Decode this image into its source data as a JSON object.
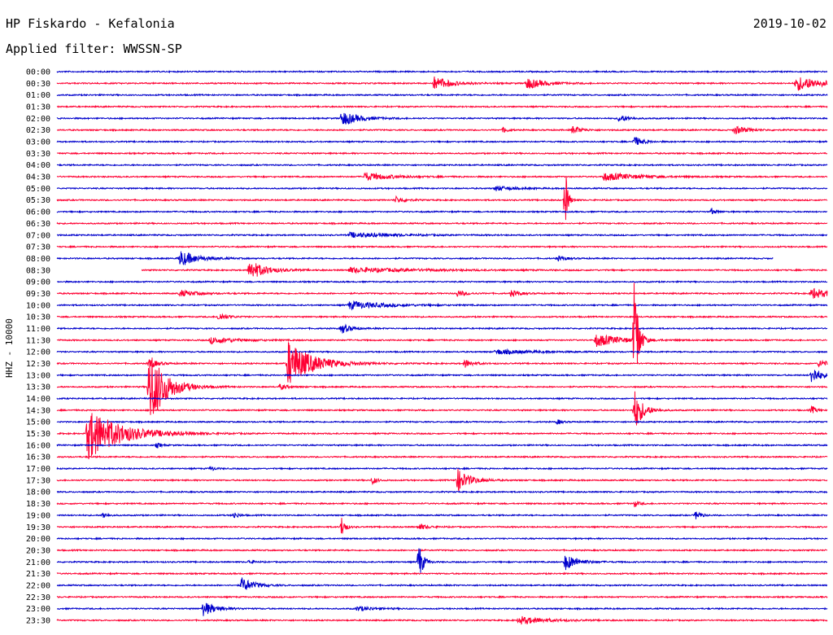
{
  "header": {
    "station": "HP Fiskardo - Kefalonia",
    "date": "2019-10-02",
    "filter": "Applied filter: WWSSN-SP"
  },
  "y_axis_label": "HHZ - 10000",
  "colors": {
    "even_row": "#0000cc",
    "odd_row": "#ff0033"
  },
  "chart_data": {
    "type": "line",
    "title": "HP Fiskardo - Kefalonia",
    "subtitle": "Applied filter: WWSSN-SP",
    "ylabel": "HHZ - 10000",
    "xlabel": "",
    "grid": false,
    "legend": "none",
    "row_interval_minutes": 30,
    "row_labels": [
      "00:00",
      "00:30",
      "01:00",
      "01:30",
      "02:00",
      "02:30",
      "03:00",
      "03:30",
      "04:00",
      "04:30",
      "05:00",
      "05:30",
      "06:00",
      "06:30",
      "07:00",
      "07:30",
      "08:00",
      "08:30",
      "09:00",
      "09:30",
      "10:00",
      "10:30",
      "11:00",
      "11:30",
      "12:00",
      "12:30",
      "13:00",
      "13:30",
      "14:00",
      "14:30",
      "15:00",
      "15:30",
      "16:00",
      "16:30",
      "17:00",
      "17:30",
      "18:00",
      "18:30",
      "19:00",
      "19:30",
      "20:00",
      "20:30",
      "21:00",
      "21:30",
      "22:00",
      "22:30",
      "23:00",
      "23:30"
    ],
    "events": [
      {
        "row": 1,
        "t": 0.49,
        "amp": 8,
        "dur": 0.02
      },
      {
        "row": 1,
        "t": 0.61,
        "amp": 7,
        "dur": 0.02
      },
      {
        "row": 1,
        "t": 0.96,
        "amp": 9,
        "dur": 0.03
      },
      {
        "row": 4,
        "t": 0.37,
        "amp": 9,
        "dur": 0.02
      },
      {
        "row": 4,
        "t": 0.73,
        "amp": 5,
        "dur": 0.01
      },
      {
        "row": 5,
        "t": 0.58,
        "amp": 4,
        "dur": 0.005
      },
      {
        "row": 5,
        "t": 0.67,
        "amp": 5,
        "dur": 0.01
      },
      {
        "row": 5,
        "t": 0.88,
        "amp": 5,
        "dur": 0.015
      },
      {
        "row": 6,
        "t": 0.75,
        "amp": 6,
        "dur": 0.01
      },
      {
        "row": 9,
        "t": 0.4,
        "amp": 5,
        "dur": 0.03
      },
      {
        "row": 9,
        "t": 0.71,
        "amp": 5,
        "dur": 0.04
      },
      {
        "row": 10,
        "t": 0.57,
        "amp": 3,
        "dur": 0.02
      },
      {
        "row": 11,
        "t": 0.44,
        "amp": 4,
        "dur": 0.01
      },
      {
        "row": 11,
        "t": 0.66,
        "amp": 40,
        "dur": 0.003
      },
      {
        "row": 12,
        "t": 0.85,
        "amp": 4,
        "dur": 0.005
      },
      {
        "row": 14,
        "t": 0.38,
        "amp": 3,
        "dur": 0.05
      },
      {
        "row": 16,
        "t": 0.16,
        "amp": 10,
        "dur": 0.02
      },
      {
        "row": 16,
        "t": 0.65,
        "amp": 3,
        "dur": 0.01
      },
      {
        "row": 17,
        "t": 0.25,
        "amp": 12,
        "dur": 0.02
      },
      {
        "row": 17,
        "t": 0.38,
        "amp": 3,
        "dur": 0.08
      },
      {
        "row": 19,
        "t": 0.16,
        "amp": 4,
        "dur": 0.02
      },
      {
        "row": 19,
        "t": 0.52,
        "amp": 4,
        "dur": 0.01
      },
      {
        "row": 19,
        "t": 0.59,
        "amp": 4,
        "dur": 0.01
      },
      {
        "row": 19,
        "t": 0.98,
        "amp": 7,
        "dur": 0.02
      },
      {
        "row": 20,
        "t": 0.38,
        "amp": 5,
        "dur": 0.04
      },
      {
        "row": 21,
        "t": 0.21,
        "amp": 5,
        "dur": 0.01
      },
      {
        "row": 22,
        "t": 0.37,
        "amp": 6,
        "dur": 0.01
      },
      {
        "row": 23,
        "t": 0.2,
        "amp": 4,
        "dur": 0.03
      },
      {
        "row": 23,
        "t": 0.7,
        "amp": 8,
        "dur": 0.03
      },
      {
        "row": 23,
        "t": 0.75,
        "amp": 95,
        "dur": 0.004
      },
      {
        "row": 24,
        "t": 0.57,
        "amp": 3,
        "dur": 0.04
      },
      {
        "row": 25,
        "t": 0.12,
        "amp": 6,
        "dur": 0.01
      },
      {
        "row": 25,
        "t": 0.3,
        "amp": 28,
        "dur": 0.03
      },
      {
        "row": 25,
        "t": 0.53,
        "amp": 5,
        "dur": 0.01
      },
      {
        "row": 25,
        "t": 0.99,
        "amp": 5,
        "dur": 0.01
      },
      {
        "row": 26,
        "t": 0.98,
        "amp": 12,
        "dur": 0.01
      },
      {
        "row": 27,
        "t": 0.12,
        "amp": 48,
        "dur": 0.02
      },
      {
        "row": 27,
        "t": 0.29,
        "amp": 3,
        "dur": 0.01
      },
      {
        "row": 29,
        "t": 0.75,
        "amp": 25,
        "dur": 0.01
      },
      {
        "row": 29,
        "t": 0.98,
        "amp": 5,
        "dur": 0.005
      },
      {
        "row": 30,
        "t": 0.65,
        "amp": 3,
        "dur": 0.005
      },
      {
        "row": 31,
        "t": 0.04,
        "amp": 32,
        "dur": 0.04
      },
      {
        "row": 32,
        "t": 0.13,
        "amp": 3,
        "dur": 0.005
      },
      {
        "row": 34,
        "t": 0.2,
        "amp": 3,
        "dur": 0.005
      },
      {
        "row": 35,
        "t": 0.41,
        "amp": 5,
        "dur": 0.005
      },
      {
        "row": 35,
        "t": 0.52,
        "amp": 14,
        "dur": 0.015
      },
      {
        "row": 37,
        "t": 0.75,
        "amp": 4,
        "dur": 0.005
      },
      {
        "row": 38,
        "t": 0.06,
        "amp": 4,
        "dur": 0.005
      },
      {
        "row": 38,
        "t": 0.23,
        "amp": 4,
        "dur": 0.005
      },
      {
        "row": 38,
        "t": 0.83,
        "amp": 6,
        "dur": 0.005
      },
      {
        "row": 39,
        "t": 0.37,
        "amp": 14,
        "dur": 0.004
      },
      {
        "row": 39,
        "t": 0.47,
        "amp": 4,
        "dur": 0.01
      },
      {
        "row": 42,
        "t": 0.47,
        "amp": 24,
        "dur": 0.005
      },
      {
        "row": 42,
        "t": 0.66,
        "amp": 10,
        "dur": 0.015
      },
      {
        "row": 42,
        "t": 0.25,
        "amp": 3,
        "dur": 0.005
      },
      {
        "row": 44,
        "t": 0.24,
        "amp": 9,
        "dur": 0.015
      },
      {
        "row": 46,
        "t": 0.19,
        "amp": 9,
        "dur": 0.015
      },
      {
        "row": 46,
        "t": 0.39,
        "amp": 3,
        "dur": 0.02
      },
      {
        "row": 47,
        "t": 0.6,
        "amp": 5,
        "dur": 0.03
      }
    ],
    "trace_gaps": [
      {
        "row": 16,
        "t_end": 0.93
      },
      {
        "row": 17,
        "t_start": 0.11
      }
    ]
  }
}
